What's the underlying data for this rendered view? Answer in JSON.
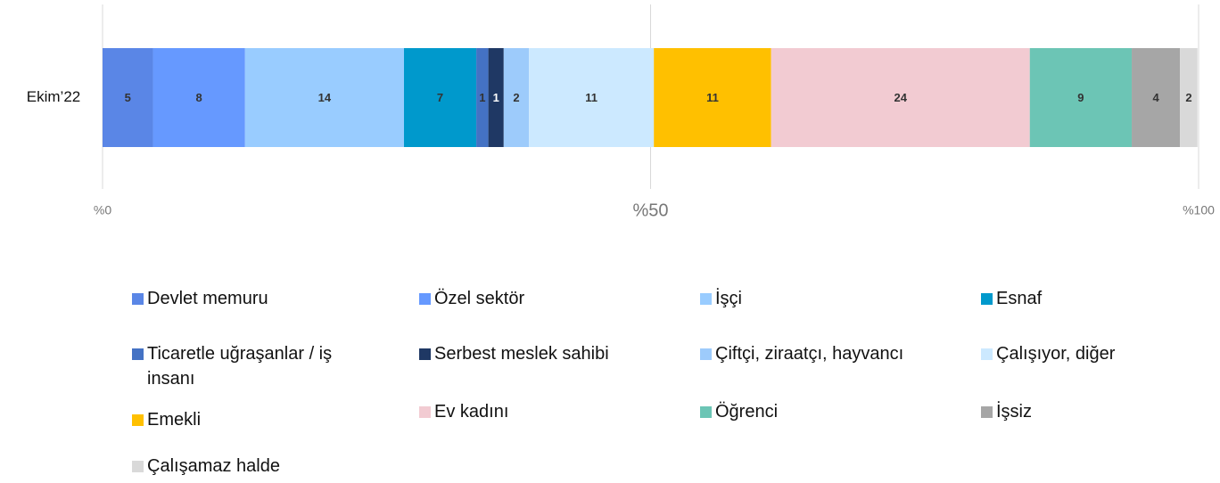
{
  "chart_data": {
    "type": "stacked-bar",
    "orientation": "horizontal",
    "categories": [
      "Ekim’22"
    ],
    "series": [
      {
        "name": "Devlet memuru",
        "color": "#5a86e6",
        "values": [
          4.6
        ],
        "value_labels": [
          "5"
        ]
      },
      {
        "name": "Özel sektör",
        "color": "#6699ff",
        "values": [
          8.4
        ],
        "value_labels": [
          "8"
        ]
      },
      {
        "name": "İşçi",
        "color": "#99ccff",
        "values": [
          14.5
        ],
        "value_labels": [
          "14"
        ]
      },
      {
        "name": "Esnaf",
        "color": "#0099cc",
        "values": [
          6.6
        ],
        "value_labels": [
          "7"
        ]
      },
      {
        "name": "Ticaretle uğraşanlar / iş insanı",
        "color": "#4472c4",
        "values": [
          1.1
        ],
        "value_labels": [
          "1"
        ]
      },
      {
        "name": "Serbest meslek sahibi",
        "color": "#1f3864",
        "values": [
          1.4
        ],
        "value_labels": [
          "1"
        ]
      },
      {
        "name": "Çiftçi, ziraatçı, hayvancı",
        "color": "#9dcbfb",
        "values": [
          2.3
        ],
        "value_labels": [
          "2"
        ]
      },
      {
        "name": "Çalışıyor, diğer",
        "color": "#cce9ff",
        "values": [
          11.4
        ],
        "value_labels": [
          "11"
        ]
      },
      {
        "name": "Emekli",
        "color": "#ffc000",
        "values": [
          10.7
        ],
        "value_labels": [
          "11"
        ]
      },
      {
        "name": "Ev kadını",
        "color": "#f2cbd2",
        "values": [
          23.6
        ],
        "value_labels": [
          "24"
        ]
      },
      {
        "name": "Öğrenci",
        "color": "#6cc5b5",
        "values": [
          9.3
        ],
        "value_labels": [
          "9"
        ]
      },
      {
        "name": "İşsiz",
        "color": "#a6a6a6",
        "values": [
          4.4
        ],
        "value_labels": [
          "4"
        ]
      },
      {
        "name": "Çalışamaz halde",
        "color": "#d9d9d9",
        "values": [
          1.6
        ],
        "value_labels": [
          "2"
        ]
      }
    ],
    "xlim": [
      0,
      100
    ],
    "xticks": [
      {
        "value": 0,
        "label": "%0"
      },
      {
        "value": 50,
        "label": "%50"
      },
      {
        "value": 100,
        "label": "%100"
      }
    ],
    "grid": true
  }
}
